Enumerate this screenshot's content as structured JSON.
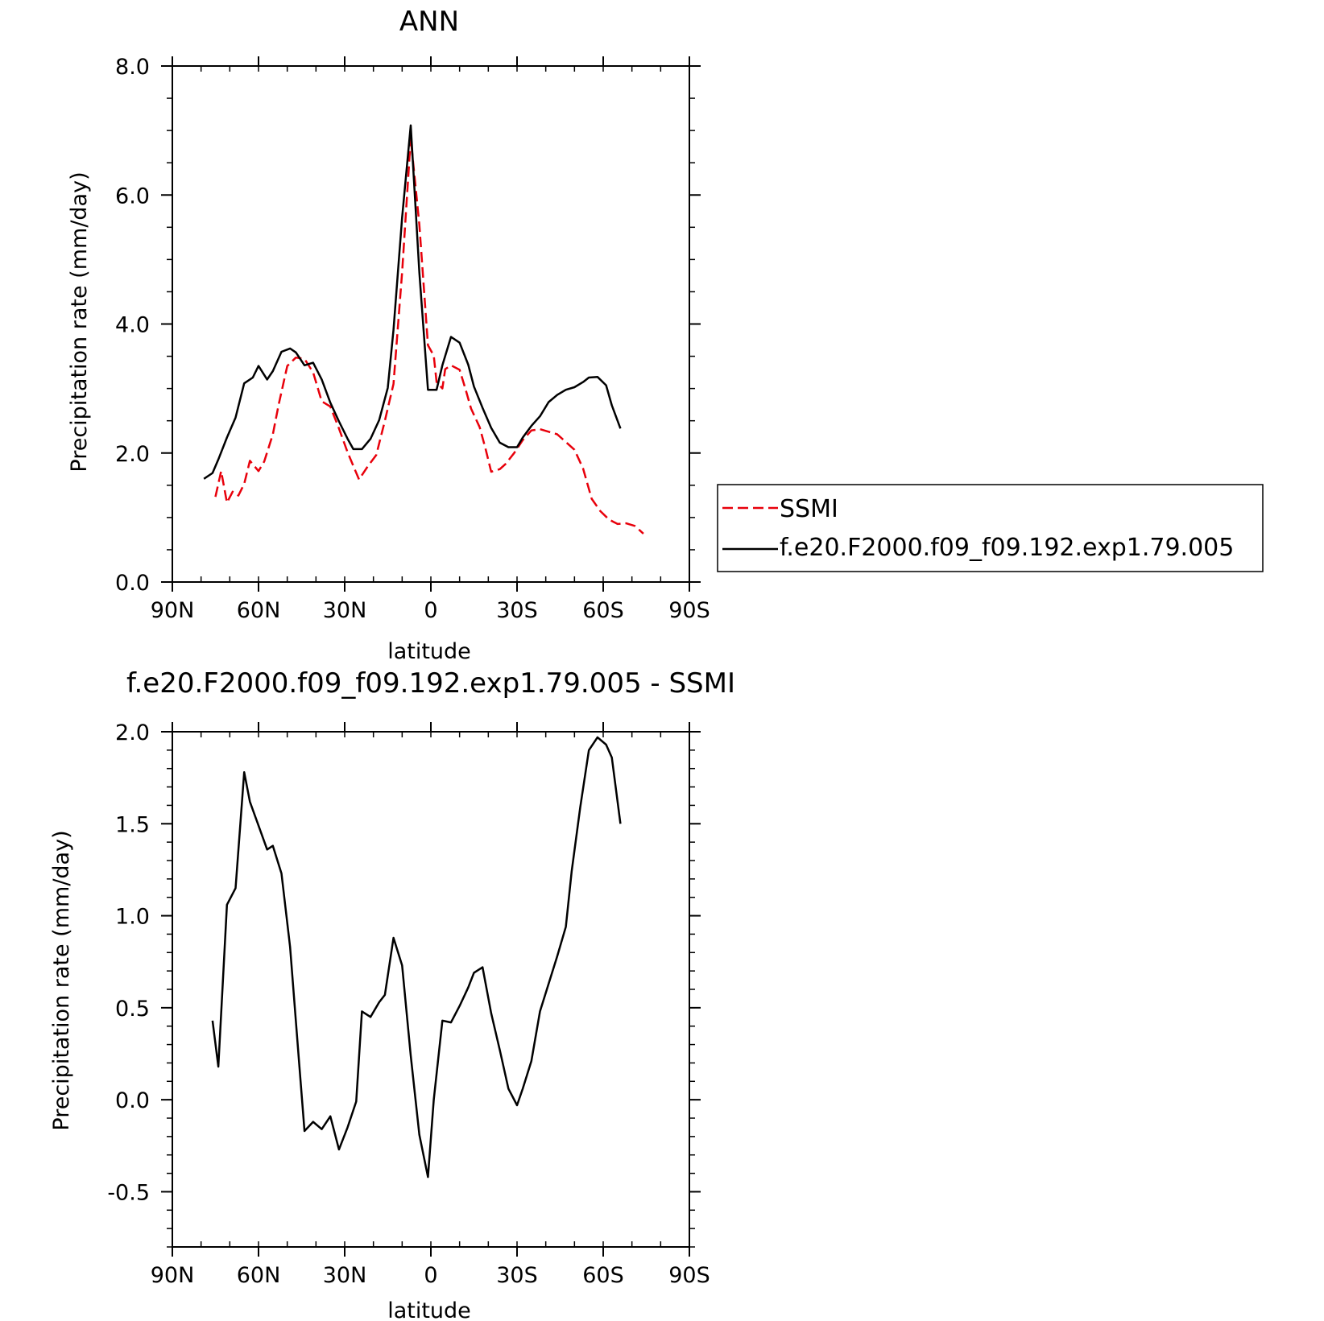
{
  "chart_data": [
    {
      "type": "line",
      "title": "ANN",
      "xlabel": "latitude",
      "ylabel": "Precipitation rate (mm/day)",
      "xlim": [
        90,
        -90
      ],
      "ylim": [
        0,
        8
      ],
      "x_ticks": [
        90,
        60,
        30,
        0,
        -30,
        -60,
        -90
      ],
      "x_tick_labels": [
        "90N",
        "60N",
        "30N",
        "0",
        "30S",
        "60S",
        "90S"
      ],
      "y_ticks": [
        0,
        2,
        4,
        6,
        8
      ],
      "y_tick_labels": [
        "0.0",
        "2.0",
        "4.0",
        "6.0",
        "8.0"
      ],
      "legend_position": "right",
      "series": [
        {
          "name": "SSMI",
          "color": "#e8000b",
          "dash": "dashed",
          "x": [
            75,
            73,
            71,
            69,
            67,
            65,
            63,
            60,
            58,
            55,
            53,
            50,
            47,
            44,
            41,
            38,
            35,
            32,
            29,
            25,
            22,
            19,
            16,
            13,
            10,
            7,
            4,
            1,
            -1,
            -2,
            -4,
            -5,
            -7,
            -10,
            -12,
            -14,
            -17,
            -19,
            -21,
            -24,
            -26,
            -29,
            -32,
            -35,
            -38,
            -41,
            -44,
            -47,
            -50,
            -53,
            -56,
            -59,
            -62,
            -65,
            -68,
            -71,
            -74
          ],
          "y": [
            1.32,
            1.72,
            1.23,
            1.4,
            1.34,
            1.52,
            1.88,
            1.72,
            1.87,
            2.29,
            2.75,
            3.35,
            3.48,
            3.46,
            3.25,
            2.8,
            2.72,
            2.38,
            2.01,
            1.59,
            1.79,
            1.97,
            2.5,
            3.07,
            4.8,
            6.88,
            5.54,
            3.67,
            3.51,
            3.1,
            3.0,
            3.3,
            3.36,
            3.29,
            3.0,
            2.69,
            2.4,
            2.07,
            1.71,
            1.75,
            1.83,
            2.0,
            2.2,
            2.35,
            2.37,
            2.33,
            2.29,
            2.17,
            2.05,
            1.76,
            1.29,
            1.1,
            0.97,
            0.9,
            0.91,
            0.87,
            0.75
          ]
        },
        {
          "name": "f.e20.F2000.f09_f09.192.exp1.79.005",
          "color": "#000000",
          "dash": "solid",
          "x": [
            79,
            76,
            74,
            71,
            68,
            65,
            62,
            60,
            57,
            55,
            52,
            49,
            47,
            44,
            41,
            38,
            35,
            32,
            29,
            27,
            24,
            21,
            18,
            15,
            13,
            10,
            7,
            4,
            1,
            -2,
            -4,
            -7,
            -10,
            -13,
            -15,
            -18,
            -21,
            -24,
            -27,
            -30,
            -32,
            -35,
            -38,
            -41,
            -44,
            -47,
            -50,
            -53,
            -55,
            -58,
            -61,
            -63,
            -66
          ],
          "y": [
            1.6,
            1.69,
            1.9,
            2.24,
            2.55,
            3.08,
            3.17,
            3.35,
            3.14,
            3.27,
            3.57,
            3.62,
            3.56,
            3.36,
            3.4,
            3.14,
            2.78,
            2.49,
            2.22,
            2.06,
            2.06,
            2.22,
            2.51,
            3.01,
            3.91,
            5.65,
            7.08,
            4.8,
            2.98,
            2.98,
            3.36,
            3.8,
            3.71,
            3.37,
            3.03,
            2.7,
            2.39,
            2.16,
            2.09,
            2.09,
            2.24,
            2.42,
            2.57,
            2.79,
            2.9,
            2.98,
            3.02,
            3.1,
            3.17,
            3.18,
            3.05,
            2.74,
            2.38
          ]
        }
      ]
    },
    {
      "type": "line",
      "title": "f.e20.F2000.f09_f09.192.exp1.79.005 - SSMI",
      "xlabel": "latitude",
      "ylabel": "Precipitation rate (mm/day)",
      "xlim": [
        90,
        -90
      ],
      "ylim": [
        -0.8,
        2.0
      ],
      "x_ticks": [
        90,
        60,
        30,
        0,
        -30,
        -60,
        -90
      ],
      "x_tick_labels": [
        "90N",
        "60N",
        "30N",
        "0",
        "30S",
        "60S",
        "90S"
      ],
      "y_ticks": [
        -0.5,
        0,
        0.5,
        1.0,
        1.5,
        2.0
      ],
      "y_tick_labels": [
        "-0.5",
        "0.0",
        "0.5",
        "1.0",
        "1.5",
        "2.0"
      ],
      "series": [
        {
          "color": "#000000",
          "dash": "solid",
          "x": [
            76,
            74,
            71,
            68,
            65,
            63,
            60,
            57,
            55,
            52,
            49,
            46,
            44,
            41,
            38,
            35,
            32,
            29,
            26,
            24,
            21,
            18,
            16,
            13,
            10,
            7,
            4,
            1,
            -1,
            -4,
            -7,
            -10,
            -13,
            -15,
            -18,
            -21,
            -24,
            -27,
            -30,
            -32,
            -35,
            -38,
            -41,
            -44,
            -47,
            -49,
            -52,
            -55,
            -58,
            -61,
            -63,
            -66
          ],
          "y": [
            0.43,
            0.18,
            1.06,
            1.15,
            1.78,
            1.62,
            1.49,
            1.36,
            1.38,
            1.23,
            0.83,
            0.23,
            -0.17,
            -0.12,
            -0.16,
            -0.09,
            -0.27,
            -0.15,
            -0.01,
            0.48,
            0.45,
            0.53,
            0.57,
            0.88,
            0.73,
            0.24,
            -0.19,
            -0.42,
            0.0,
            0.43,
            0.42,
            0.51,
            0.61,
            0.69,
            0.72,
            0.47,
            0.27,
            0.06,
            -0.03,
            0.06,
            0.21,
            0.48,
            0.63,
            0.78,
            0.94,
            1.24,
            1.59,
            1.9,
            1.97,
            1.93,
            1.86,
            1.5
          ]
        }
      ]
    }
  ]
}
